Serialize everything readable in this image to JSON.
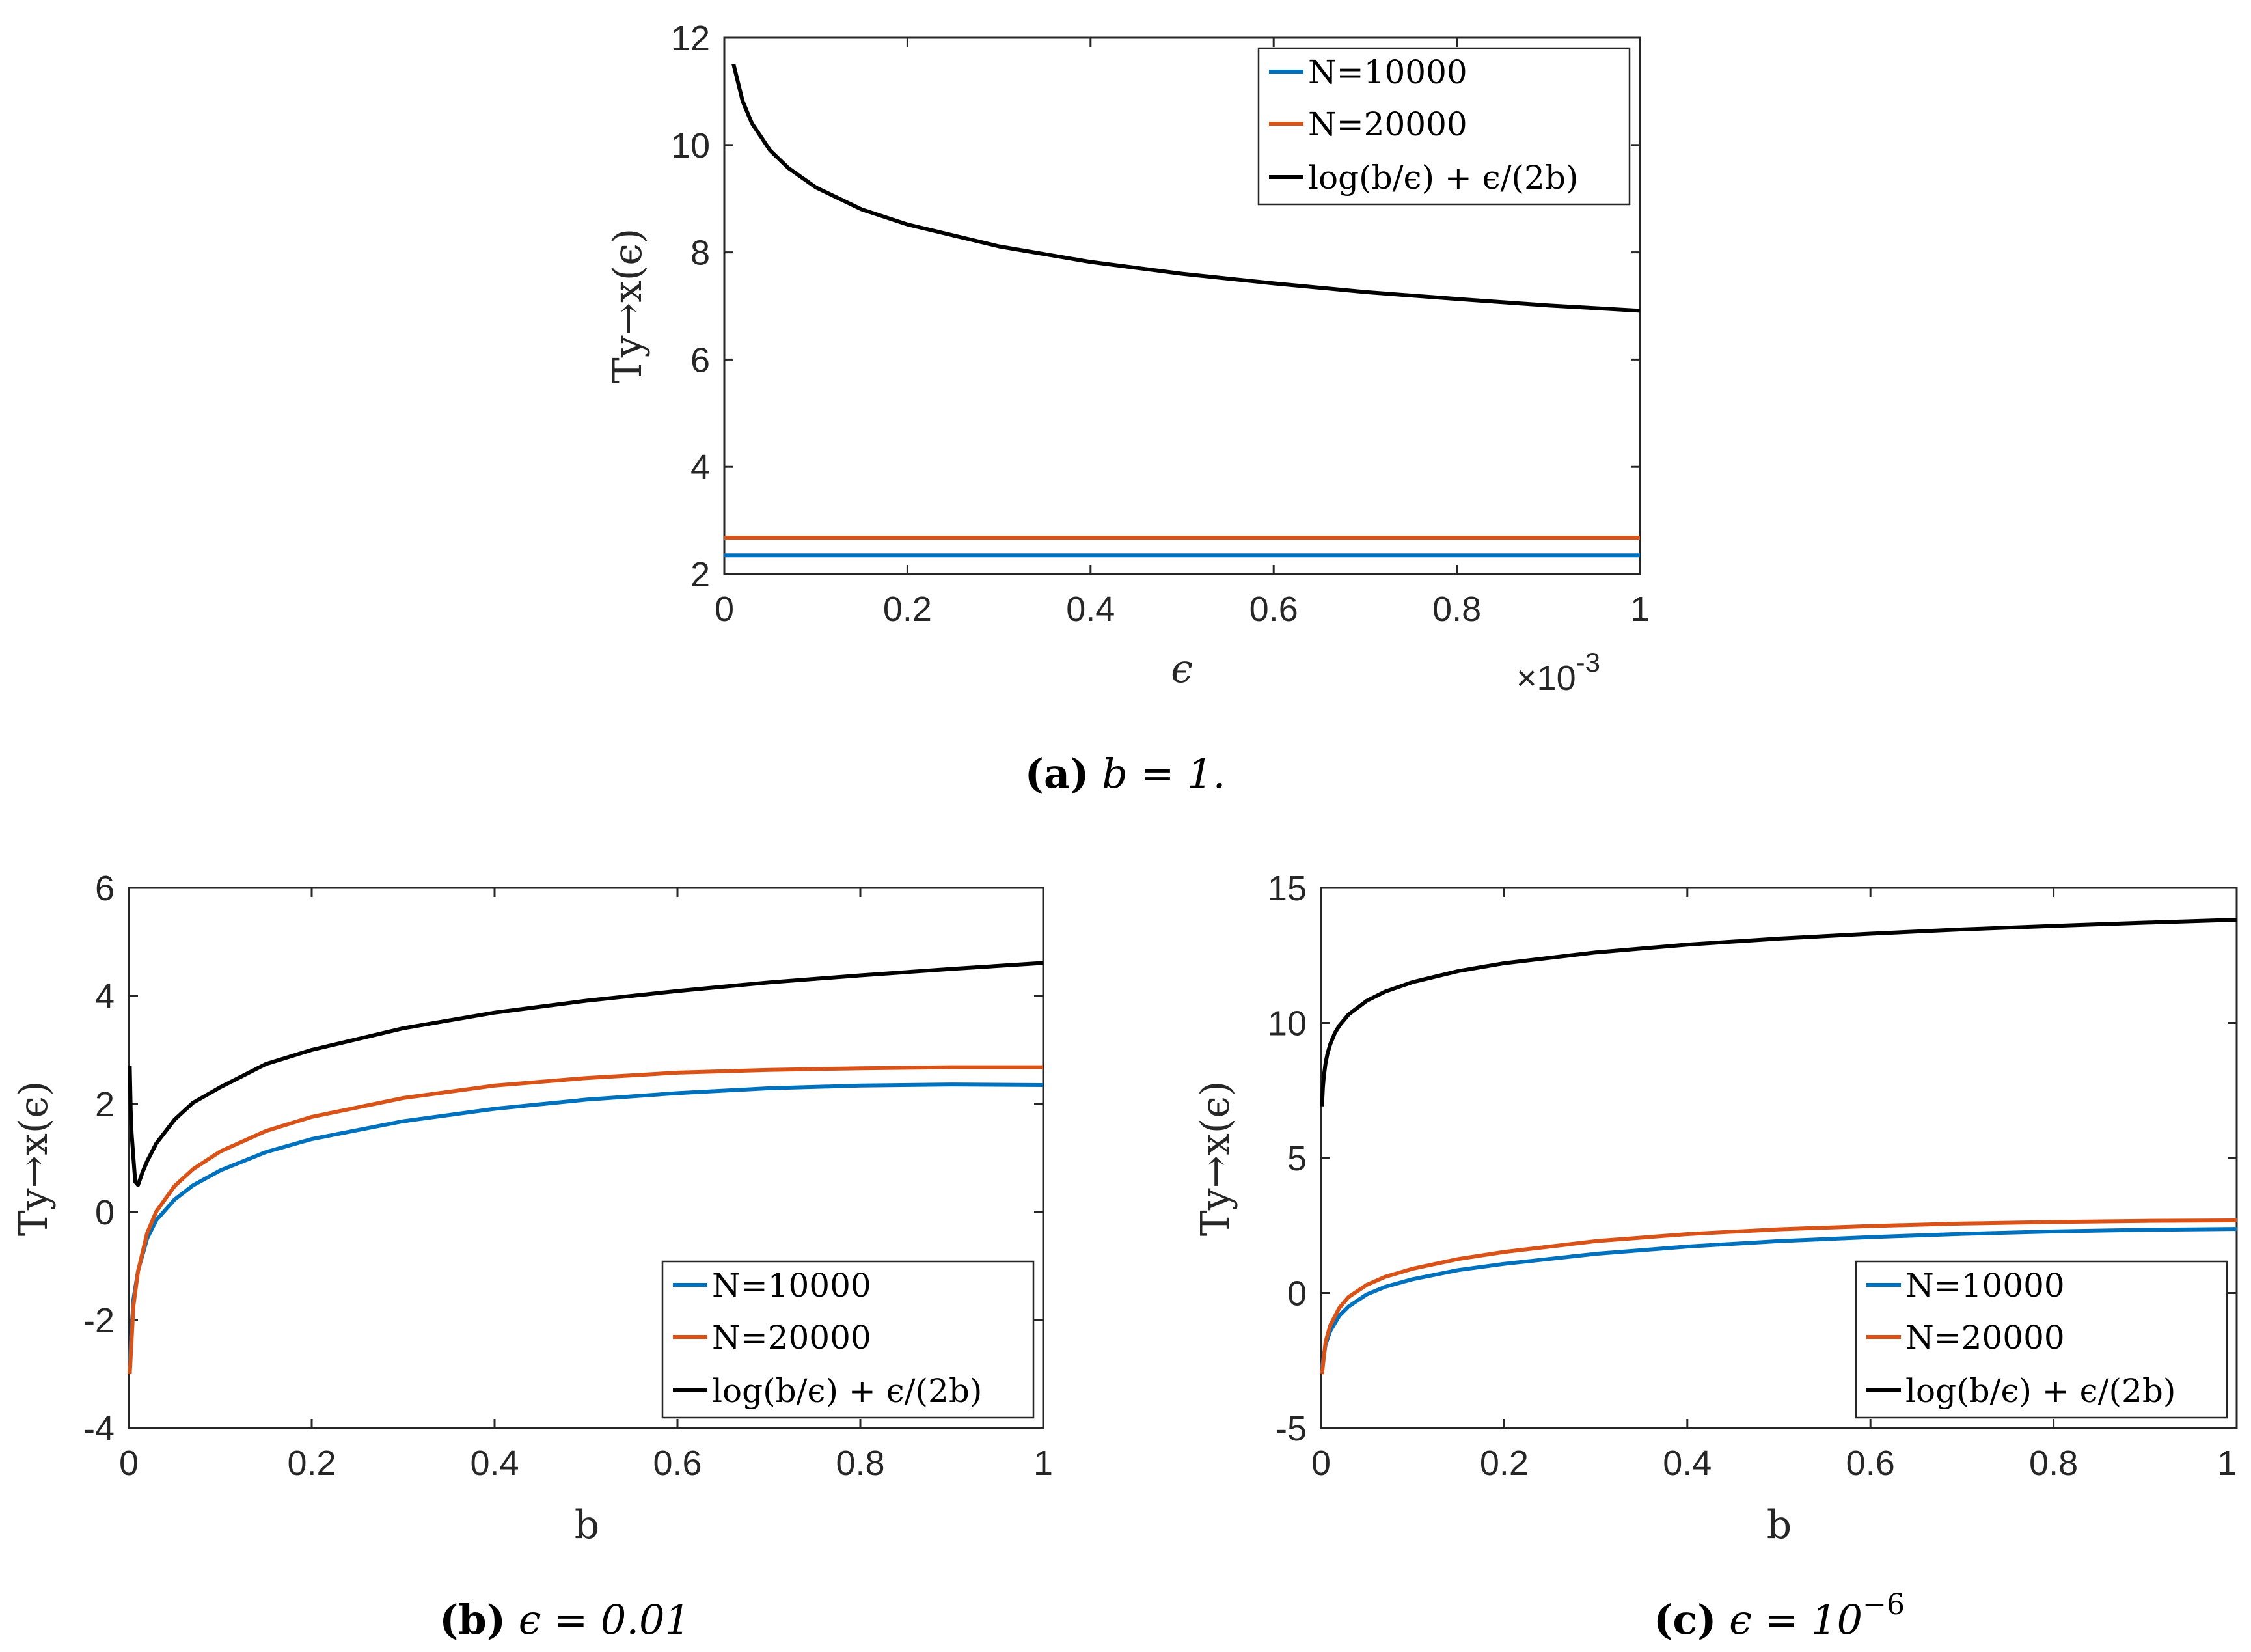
{
  "colors": {
    "blue": "#0072BD",
    "orange": "#D95319",
    "black": "#000000"
  },
  "chart_data": [
    {
      "id": "a",
      "type": "line",
      "caption": {
        "letter": "(a)",
        "text": " b = 1."
      },
      "xlabel": "ϵ",
      "ylabel": "Ty→x(ϵ)",
      "x_exponent_label": "×10",
      "x_exponent_sup": "-3",
      "xlim": [
        0,
        1
      ],
      "ylim": [
        2,
        12
      ],
      "xticks": [
        0,
        0.2,
        0.4,
        0.6,
        0.8,
        1
      ],
      "xtick_labels": [
        "0",
        "0.2",
        "0.4",
        "0.6",
        "0.8",
        "1"
      ],
      "yticks": [
        2,
        4,
        6,
        8,
        10,
        12
      ],
      "ytick_labels": [
        "2",
        "4",
        "6",
        "8",
        "10",
        "12"
      ],
      "legend_position": "top-right",
      "series": [
        {
          "name": "N=10000",
          "color": "#0072BD",
          "x": [
            0,
            1
          ],
          "y": [
            2.35,
            2.35
          ]
        },
        {
          "name": "N=20000",
          "color": "#D95319",
          "x": [
            0,
            1
          ],
          "y": [
            2.68,
            2.68
          ]
        },
        {
          "name": "log(b/ϵ) + ϵ/(2b)",
          "color": "#000000",
          "x": [
            0.01,
            0.02,
            0.03,
            0.05,
            0.07,
            0.1,
            0.15,
            0.2,
            0.3,
            0.4,
            0.5,
            0.6,
            0.7,
            0.8,
            0.9,
            1.0
          ],
          "y": [
            11.51,
            10.82,
            10.41,
            9.9,
            9.57,
            9.21,
            8.8,
            8.52,
            8.11,
            7.82,
            7.6,
            7.42,
            7.26,
            7.13,
            7.01,
            6.91
          ]
        }
      ]
    },
    {
      "id": "b",
      "type": "line",
      "caption": {
        "letter": "(b)",
        "text": " ϵ = 0.01"
      },
      "xlabel": "b",
      "ylabel": "Ty→x(ϵ)",
      "xlim": [
        0,
        1
      ],
      "ylim": [
        -4,
        6
      ],
      "xticks": [
        0,
        0.2,
        0.4,
        0.6,
        0.8,
        1
      ],
      "xtick_labels": [
        "0",
        "0.2",
        "0.4",
        "0.6",
        "0.8",
        "1"
      ],
      "yticks": [
        -4,
        -2,
        0,
        2,
        4,
        6
      ],
      "ytick_labels": [
        "-4",
        "-2",
        "0",
        "2",
        "4",
        "6"
      ],
      "legend_position": "bottom-right",
      "series": [
        {
          "name": "N=10000",
          "color": "#0072BD",
          "x": [
            0.001,
            0.005,
            0.01,
            0.02,
            0.03,
            0.05,
            0.07,
            0.1,
            0.15,
            0.2,
            0.3,
            0.4,
            0.5,
            0.6,
            0.7,
            0.8,
            0.9,
            1.0
          ],
          "y": [
            -2.76,
            -1.62,
            -1.09,
            -0.49,
            -0.15,
            0.23,
            0.49,
            0.77,
            1.11,
            1.35,
            1.68,
            1.91,
            2.08,
            2.2,
            2.29,
            2.34,
            2.36,
            2.35
          ]
        },
        {
          "name": "N=20000",
          "color": "#D95319",
          "x": [
            0.001,
            0.005,
            0.01,
            0.02,
            0.03,
            0.05,
            0.07,
            0.1,
            0.15,
            0.2,
            0.3,
            0.4,
            0.5,
            0.6,
            0.7,
            0.8,
            0.9,
            1.0
          ],
          "y": [
            -3.0,
            -1.74,
            -1.1,
            -0.39,
            0.01,
            0.48,
            0.79,
            1.12,
            1.5,
            1.76,
            2.11,
            2.34,
            2.48,
            2.58,
            2.63,
            2.66,
            2.68,
            2.68
          ]
        },
        {
          "name": "log(b/ϵ) + ϵ/(2b)",
          "color": "#000000",
          "x": [
            0.001,
            0.002,
            0.003,
            0.005,
            0.007,
            0.01,
            0.015,
            0.02,
            0.03,
            0.05,
            0.07,
            0.1,
            0.15,
            0.2,
            0.3,
            0.4,
            0.5,
            0.6,
            0.7,
            0.8,
            0.9,
            1.0
          ],
          "y": [
            2.7,
            1.89,
            1.46,
            1.0,
            0.56,
            0.5,
            0.74,
            0.94,
            1.27,
            1.71,
            2.02,
            2.31,
            2.74,
            3.0,
            3.4,
            3.69,
            3.91,
            4.09,
            4.25,
            4.38,
            4.5,
            4.61
          ]
        }
      ]
    },
    {
      "id": "c",
      "type": "line",
      "caption": {
        "letter": "(c)",
        "text": " ϵ = 10",
        "sup": "−6"
      },
      "xlabel": "b",
      "ylabel": "Ty→x(ϵ)",
      "xlim": [
        0,
        1
      ],
      "ylim": [
        -5,
        15
      ],
      "xticks": [
        0,
        0.2,
        0.4,
        0.6,
        0.8,
        1
      ],
      "xtick_labels": [
        "0",
        "0.2",
        "0.4",
        "0.6",
        "0.8",
        "1"
      ],
      "yticks": [
        -5,
        0,
        5,
        10,
        15
      ],
      "ytick_labels": [
        "-5",
        "0",
        "5",
        "10",
        "15"
      ],
      "legend_position": "bottom-right",
      "series": [
        {
          "name": "N=10000",
          "color": "#0072BD",
          "x": [
            0.001,
            0.005,
            0.01,
            0.02,
            0.03,
            0.05,
            0.07,
            0.1,
            0.15,
            0.2,
            0.3,
            0.4,
            0.5,
            0.6,
            0.7,
            0.8,
            0.9,
            1.0
          ],
          "y": [
            -2.76,
            -1.9,
            -1.41,
            -0.84,
            -0.5,
            -0.05,
            0.23,
            0.51,
            0.85,
            1.08,
            1.45,
            1.72,
            1.92,
            2.07,
            2.19,
            2.28,
            2.34,
            2.37
          ]
        },
        {
          "name": "N=20000",
          "color": "#D95319",
          "x": [
            0.001,
            0.005,
            0.01,
            0.02,
            0.03,
            0.05,
            0.07,
            0.1,
            0.15,
            0.2,
            0.3,
            0.4,
            0.5,
            0.6,
            0.7,
            0.8,
            0.9,
            1.0
          ],
          "y": [
            -3.0,
            -1.8,
            -1.2,
            -0.55,
            -0.15,
            0.3,
            0.6,
            0.9,
            1.26,
            1.52,
            1.92,
            2.18,
            2.36,
            2.48,
            2.57,
            2.63,
            2.67,
            2.69
          ]
        },
        {
          "name": "log(b/ϵ) + ϵ/(2b)",
          "color": "#000000",
          "x": [
            0.001,
            0.002,
            0.003,
            0.005,
            0.007,
            0.01,
            0.015,
            0.02,
            0.03,
            0.05,
            0.07,
            0.1,
            0.15,
            0.2,
            0.3,
            0.4,
            0.5,
            0.6,
            0.7,
            0.8,
            0.9,
            1.0
          ],
          "y": [
            6.91,
            7.6,
            8.01,
            8.52,
            8.85,
            9.21,
            9.62,
            9.9,
            10.31,
            10.82,
            11.16,
            11.51,
            11.92,
            12.21,
            12.61,
            12.9,
            13.12,
            13.3,
            13.46,
            13.59,
            13.71,
            13.82
          ]
        }
      ]
    }
  ]
}
